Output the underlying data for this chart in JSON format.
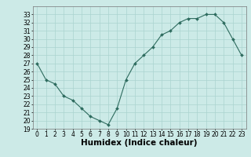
{
  "x": [
    0,
    1,
    2,
    3,
    4,
    5,
    6,
    7,
    8,
    9,
    10,
    11,
    12,
    13,
    14,
    15,
    16,
    17,
    18,
    19,
    20,
    21,
    22,
    23
  ],
  "y": [
    27,
    25,
    24.5,
    23,
    22.5,
    21.5,
    20.5,
    20,
    19.5,
    21.5,
    25,
    27,
    28,
    29,
    30.5,
    31,
    32,
    32.5,
    32.5,
    33,
    33,
    32,
    30,
    28
  ],
  "line_color": "#2d6b5e",
  "marker_color": "#2d6b5e",
  "bg_color": "#cceae7",
  "grid_color": "#aad4d0",
  "xlabel": "Humidex (Indice chaleur)",
  "ylim": [
    19,
    34
  ],
  "xlim": [
    -0.5,
    23.5
  ],
  "yticks": [
    19,
    20,
    21,
    22,
    23,
    24,
    25,
    26,
    27,
    28,
    29,
    30,
    31,
    32,
    33
  ],
  "xticks": [
    0,
    1,
    2,
    3,
    4,
    5,
    6,
    7,
    8,
    9,
    10,
    11,
    12,
    13,
    14,
    15,
    16,
    17,
    18,
    19,
    20,
    21,
    22,
    23
  ],
  "tick_fontsize": 5.5,
  "xlabel_fontsize": 7.5
}
